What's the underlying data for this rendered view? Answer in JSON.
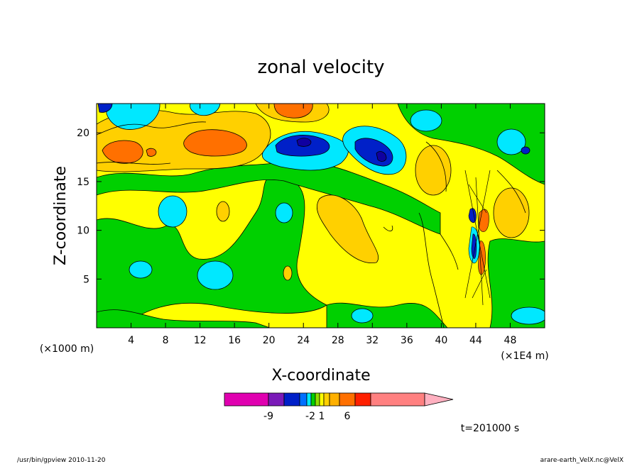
{
  "chart_data": {
    "type": "heatmap",
    "title": "zonal velocity",
    "xlabel": "X-coordinate",
    "ylabel": "Z-coordinate",
    "x_unit_label": "(×1000 m)",
    "x_scale_label": "(×1E4 m)",
    "xlim": [
      0,
      52
    ],
    "ylim": [
      0,
      23
    ],
    "x_ticks": [
      4,
      8,
      12,
      16,
      20,
      24,
      28,
      32,
      36,
      40,
      44,
      48
    ],
    "y_ticks": [
      5,
      10,
      15,
      20
    ],
    "colorbar": {
      "tick_labels": [
        "-9",
        "-2",
        "1",
        "6"
      ],
      "colors": [
        "#e000b0",
        "#7a1ab8",
        "#0020c8",
        "#0070ff",
        "#00e8ff",
        "#00d000",
        "#90e000",
        "#ffff00",
        "#ffd000",
        "#ffb000",
        "#ff7000",
        "#ff2000",
        "#ff8080",
        "#ffb0c0"
      ]
    },
    "time_label": "t=201000 s",
    "fields": {
      "background_color": "#ffff00",
      "features": [
        {
          "name": "upper-orange-left",
          "color": "#ff7000",
          "x": 3,
          "z": 19
        },
        {
          "name": "upper-orange-mid",
          "color": "#ff7000",
          "x": 13,
          "z": 19.5
        },
        {
          "name": "upper-orange-top",
          "color": "#ff7000",
          "x": 22,
          "z": 22.5
        },
        {
          "name": "blue-jet-1",
          "color": "#0020c8",
          "x": 24,
          "z": 19.3
        },
        {
          "name": "blue-jet-2",
          "color": "#0020c8",
          "x": 33,
          "z": 18.5
        },
        {
          "name": "cyan-1",
          "color": "#00e8ff",
          "x": 10,
          "z": 12.5
        },
        {
          "name": "cyan-2",
          "color": "#00e8ff",
          "x": 21.5,
          "z": 12
        },
        {
          "name": "cyan-3",
          "color": "#00e8ff",
          "x": 4,
          "z": 6.5
        },
        {
          "name": "cyan-4",
          "color": "#00e8ff",
          "x": 14,
          "z": 5.5
        },
        {
          "name": "cyan-5",
          "color": "#00e8ff",
          "x": 47,
          "z": 2
        },
        {
          "name": "green-band",
          "color": "#00d000",
          "x": 26,
          "z": 10
        },
        {
          "name": "wave-packet",
          "color": "#0020c8",
          "x": 43.5,
          "z": 10
        }
      ]
    }
  },
  "footer": {
    "left": "/usr/bin/gpview  2010-11-20",
    "right": "arare-earth_VelX.nc@VelX"
  }
}
